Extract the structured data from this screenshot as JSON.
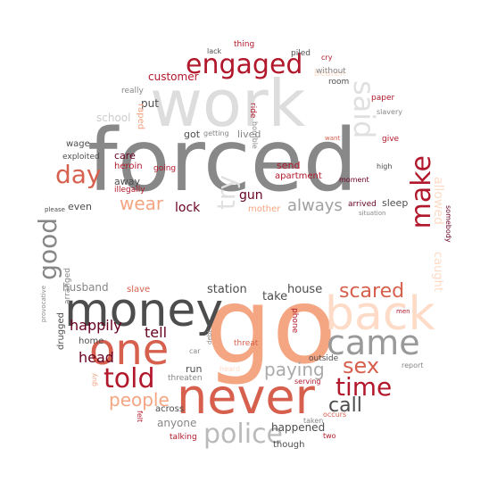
{
  "words": [
    {
      "text": "forced",
      "color": "#888888"
    },
    {
      "text": "work",
      "color": "#dddddd"
    },
    {
      "text": "go",
      "color": "#f4a582"
    },
    {
      "text": "money",
      "color": "#4d4d4d"
    },
    {
      "text": "never",
      "color": "#d6604d"
    },
    {
      "text": "back",
      "color": "#fddbc7"
    },
    {
      "text": "one",
      "color": "#d6604d"
    },
    {
      "text": "came",
      "color": "#999999"
    },
    {
      "text": "engaged",
      "color": "#b2182b"
    },
    {
      "text": "police",
      "color": "#bababa"
    },
    {
      "text": "told",
      "color": "#b2182b"
    },
    {
      "text": "make",
      "color": "#b2182b"
    },
    {
      "text": "time",
      "color": "#b2182b"
    },
    {
      "text": "said",
      "color": "#e0e0e0"
    },
    {
      "text": "good",
      "color": "#878787"
    },
    {
      "text": "day",
      "color": "#d6604d"
    },
    {
      "text": "scared",
      "color": "#d6604d"
    },
    {
      "text": "sex",
      "color": "#d6604d"
    },
    {
      "text": "try",
      "color": "#e0e0e0"
    },
    {
      "text": "call",
      "color": "#4d4d4d"
    },
    {
      "text": "paying",
      "color": "#aaaaaa"
    },
    {
      "text": "people",
      "color": "#f4a582"
    },
    {
      "text": "head",
      "color": "#67001f"
    },
    {
      "text": "tell",
      "color": "#67001f"
    },
    {
      "text": "happily",
      "color": "#67001f"
    },
    {
      "text": "wear",
      "color": "#f4a582"
    },
    {
      "text": "always",
      "color": "#a0a0a0"
    },
    {
      "text": "lock",
      "color": "#67001f"
    },
    {
      "text": "gun",
      "color": "#67001f"
    },
    {
      "text": "station",
      "color": "#4d4d4d"
    },
    {
      "text": "house",
      "color": "#4d4d4d"
    },
    {
      "text": "take",
      "color": "#4d4d4d"
    },
    {
      "text": "husband",
      "color": "#878787"
    },
    {
      "text": "anyone",
      "color": "#878787"
    },
    {
      "text": "happened",
      "color": "#4d4d4d"
    },
    {
      "text": "allowed",
      "color": "#fddbc7"
    },
    {
      "text": "caught",
      "color": "#fddbc7"
    },
    {
      "text": "put",
      "color": "#4d4d4d"
    },
    {
      "text": "got",
      "color": "#4d4d4d"
    },
    {
      "text": "lived",
      "color": "#878787"
    },
    {
      "text": "care",
      "color": "#67001f"
    },
    {
      "text": "away",
      "color": "#4d4d4d"
    },
    {
      "text": "even",
      "color": "#4d4d4d"
    },
    {
      "text": "send",
      "color": "#b2182b"
    },
    {
      "text": "apartment",
      "color": "#b2182b"
    },
    {
      "text": "sleep",
      "color": "#4d4d4d"
    },
    {
      "text": "arrived",
      "color": "#67001f"
    },
    {
      "text": "customer",
      "color": "#b2182b"
    },
    {
      "text": "school",
      "color": "#cccccc"
    },
    {
      "text": "exploited",
      "color": "#4d4d4d"
    },
    {
      "text": "wage",
      "color": "#4d4d4d"
    },
    {
      "text": "heroin",
      "color": "#b2182b"
    },
    {
      "text": "illegally",
      "color": "#b2182b"
    },
    {
      "text": "going",
      "color": "#b2182b"
    },
    {
      "text": "raped",
      "color": "#f4a582"
    },
    {
      "text": "mother",
      "color": "#f4a582"
    },
    {
      "text": "beaten",
      "color": "#fddbc7"
    },
    {
      "text": "piled",
      "color": "#4d4d4d"
    },
    {
      "text": "without",
      "color": "#878787"
    },
    {
      "text": "room",
      "color": "#4d4d4d"
    },
    {
      "text": "paper",
      "color": "#b2182b"
    },
    {
      "text": "give",
      "color": "#b2182b"
    },
    {
      "text": "high",
      "color": "#4d4d4d"
    },
    {
      "text": "moment",
      "color": "#67001f"
    },
    {
      "text": "thing",
      "color": "#b2182b"
    },
    {
      "text": "lack",
      "color": "#4d4d4d"
    },
    {
      "text": "cry",
      "color": "#b2182b"
    },
    {
      "text": "really",
      "color": "#878787"
    },
    {
      "text": "slavery",
      "color": "#878787"
    },
    {
      "text": "ride",
      "color": "#b2182b"
    },
    {
      "text": "horrible",
      "color": "#878787"
    },
    {
      "text": "getting",
      "color": "#878787"
    },
    {
      "text": "slave",
      "color": "#d6604d"
    },
    {
      "text": "drugged",
      "color": "#4d4d4d"
    },
    {
      "text": "home",
      "color": "#4d4d4d"
    },
    {
      "text": "run",
      "color": "#4d4d4d"
    },
    {
      "text": "threaten",
      "color": "#878787"
    },
    {
      "text": "threat",
      "color": "#d6604d"
    },
    {
      "text": "heard",
      "color": "#fddbc7"
    },
    {
      "text": "phone",
      "color": "#b2182b"
    },
    {
      "text": "outside",
      "color": "#4d4d4d"
    },
    {
      "text": "report",
      "color": "#878787"
    },
    {
      "text": "serving",
      "color": "#b2182b"
    },
    {
      "text": "across",
      "color": "#4d4d4d"
    },
    {
      "text": "talking",
      "color": "#b2182b"
    },
    {
      "text": "though",
      "color": "#4d4d4d"
    },
    {
      "text": "two",
      "color": "#b2182b"
    },
    {
      "text": "occurs",
      "color": "#d6604d"
    },
    {
      "text": "taken",
      "color": "#878787"
    },
    {
      "text": "arranged",
      "color": "#878787"
    },
    {
      "text": "provocative",
      "color": "#878787"
    },
    {
      "text": "somebody",
      "color": "#67001f"
    },
    {
      "text": "situation",
      "color": "#878787"
    },
    {
      "text": "please",
      "color": "#4d4d4d"
    },
    {
      "text": "debt",
      "color": "#878787"
    },
    {
      "text": "car",
      "color": "#878787"
    },
    {
      "text": "felt",
      "color": "#b2182b"
    },
    {
      "text": "men",
      "color": "#b2182b"
    },
    {
      "text": "guy",
      "color": "#f4a582"
    },
    {
      "text": "want",
      "color": "#d6604d"
    }
  ]
}
